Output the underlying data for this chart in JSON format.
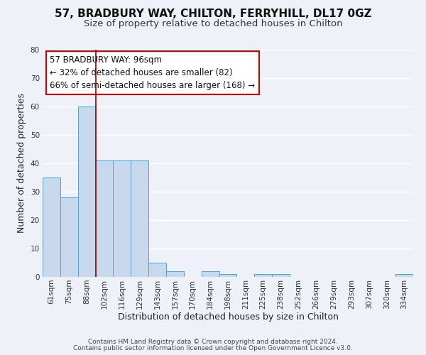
{
  "title": "57, BRADBURY WAY, CHILTON, FERRYHILL, DL17 0GZ",
  "subtitle": "Size of property relative to detached houses in Chilton",
  "xlabel": "Distribution of detached houses by size in Chilton",
  "ylabel": "Number of detached properties",
  "bin_labels": [
    "61sqm",
    "75sqm",
    "88sqm",
    "102sqm",
    "116sqm",
    "129sqm",
    "143sqm",
    "157sqm",
    "170sqm",
    "184sqm",
    "198sqm",
    "211sqm",
    "225sqm",
    "238sqm",
    "252sqm",
    "266sqm",
    "279sqm",
    "293sqm",
    "307sqm",
    "320sqm",
    "334sqm"
  ],
  "bar_values": [
    35,
    28,
    60,
    41,
    41,
    41,
    5,
    2,
    0,
    2,
    1,
    0,
    1,
    1,
    0,
    0,
    0,
    0,
    0,
    0,
    1
  ],
  "bar_color": "#c8d9ed",
  "bar_edge_color": "#5a9fd4",
  "vline_x_index": 3,
  "vline_color": "#8b0000",
  "annotation_text": "57 BRADBURY WAY: 96sqm\n← 32% of detached houses are smaller (82)\n66% of semi-detached houses are larger (168) →",
  "annotation_box_color": "#ffffff",
  "annotation_box_edge": "#cc0000",
  "ylim": [
    0,
    80
  ],
  "yticks": [
    0,
    10,
    20,
    30,
    40,
    50,
    60,
    70,
    80
  ],
  "footer1": "Contains HM Land Registry data © Crown copyright and database right 2024.",
  "footer2": "Contains public sector information licensed under the Open Government Licence v3.0.",
  "background_color": "#eef2f8",
  "grid_color": "#ffffff",
  "title_fontsize": 11,
  "subtitle_fontsize": 9.5,
  "axis_label_fontsize": 9,
  "tick_fontsize": 7.5,
  "annotation_fontsize": 8.5,
  "footer_fontsize": 6.5
}
